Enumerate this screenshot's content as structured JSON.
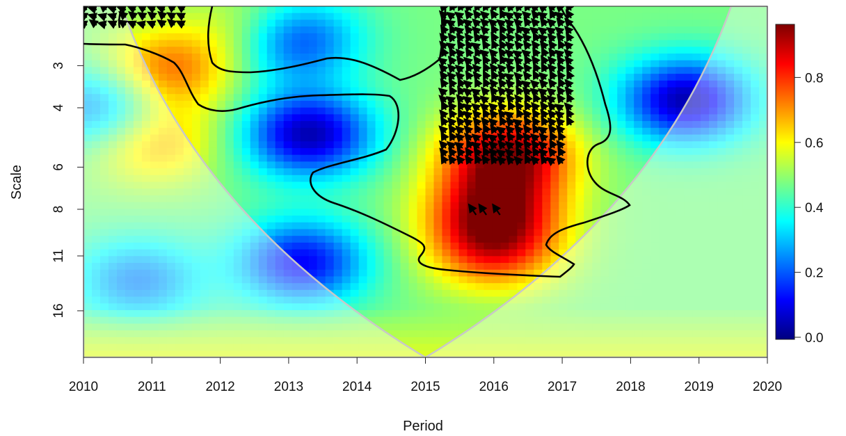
{
  "chart_data": {
    "type": "heatmap",
    "subtype": "wavelet coherence",
    "xlabel": "Period",
    "ylabel": "Scale",
    "x_ticks": [
      "2010",
      "2011",
      "2012",
      "2013",
      "2014",
      "2015",
      "2016",
      "2017",
      "2018",
      "2019",
      "2020"
    ],
    "xlim": [
      2010,
      2020
    ],
    "y_ticks": [
      "3",
      "4",
      "6",
      "8",
      "11",
      "16"
    ],
    "y_tick_values": [
      3,
      4,
      6,
      8,
      11,
      16
    ],
    "y_scale": "log2",
    "y_direction": "top-to-bottom",
    "ylim": [
      2,
      22
    ],
    "colorbar": {
      "ticks": [
        "0.0",
        "0.2",
        "0.4",
        "0.6",
        "0.8"
      ],
      "tick_values": [
        0.0,
        0.2,
        0.4,
        0.6,
        0.8
      ],
      "range": [
        0,
        0.97
      ],
      "placement": "right",
      "colors": [
        "#00007f",
        "#0000ff",
        "#007fff",
        "#00ffff",
        "#7fff7f",
        "#ffff00",
        "#ff7f00",
        "#ff0000",
        "#7f0000"
      ]
    },
    "hotspots": [
      {
        "year": 2016.2,
        "scale": 5.5,
        "coherence": 0.93
      },
      {
        "year": 2016.0,
        "scale": 8.0,
        "coherence": 0.85
      },
      {
        "year": 2011.2,
        "scale": 3.1,
        "coherence": 0.75
      },
      {
        "year": 2012.6,
        "scale": 2.4,
        "coherence": 0.72
      },
      {
        "year": 2011.0,
        "scale": 5.0,
        "coherence": 0.7
      },
      {
        "year": 2016.0,
        "scale": 10.5,
        "coherence": 0.78
      }
    ],
    "coldspots": [
      {
        "year": 2013.0,
        "scale": 2.5,
        "coherence": 0.05
      },
      {
        "year": 2013.3,
        "scale": 4.8,
        "coherence": 0.05
      },
      {
        "year": 2018.8,
        "scale": 3.8,
        "coherence": 0.05
      },
      {
        "year": 2013.2,
        "scale": 11.5,
        "coherence": 0.12
      },
      {
        "year": 2010.8,
        "scale": 13.0,
        "coherence": 0.25
      },
      {
        "year": 2010.3,
        "scale": 4.0,
        "coherence": 0.2
      }
    ],
    "cone_of_influence": "shaded outside a V-shaped boundary reaching scale 21 at 2015",
    "significance_contour": "black line enclosing significant regions",
    "phase_arrows": "black arrows, mainly pointing up-left, in 2015.2-2017.3 at scales 2-6 and near 2016 at scale 8"
  }
}
